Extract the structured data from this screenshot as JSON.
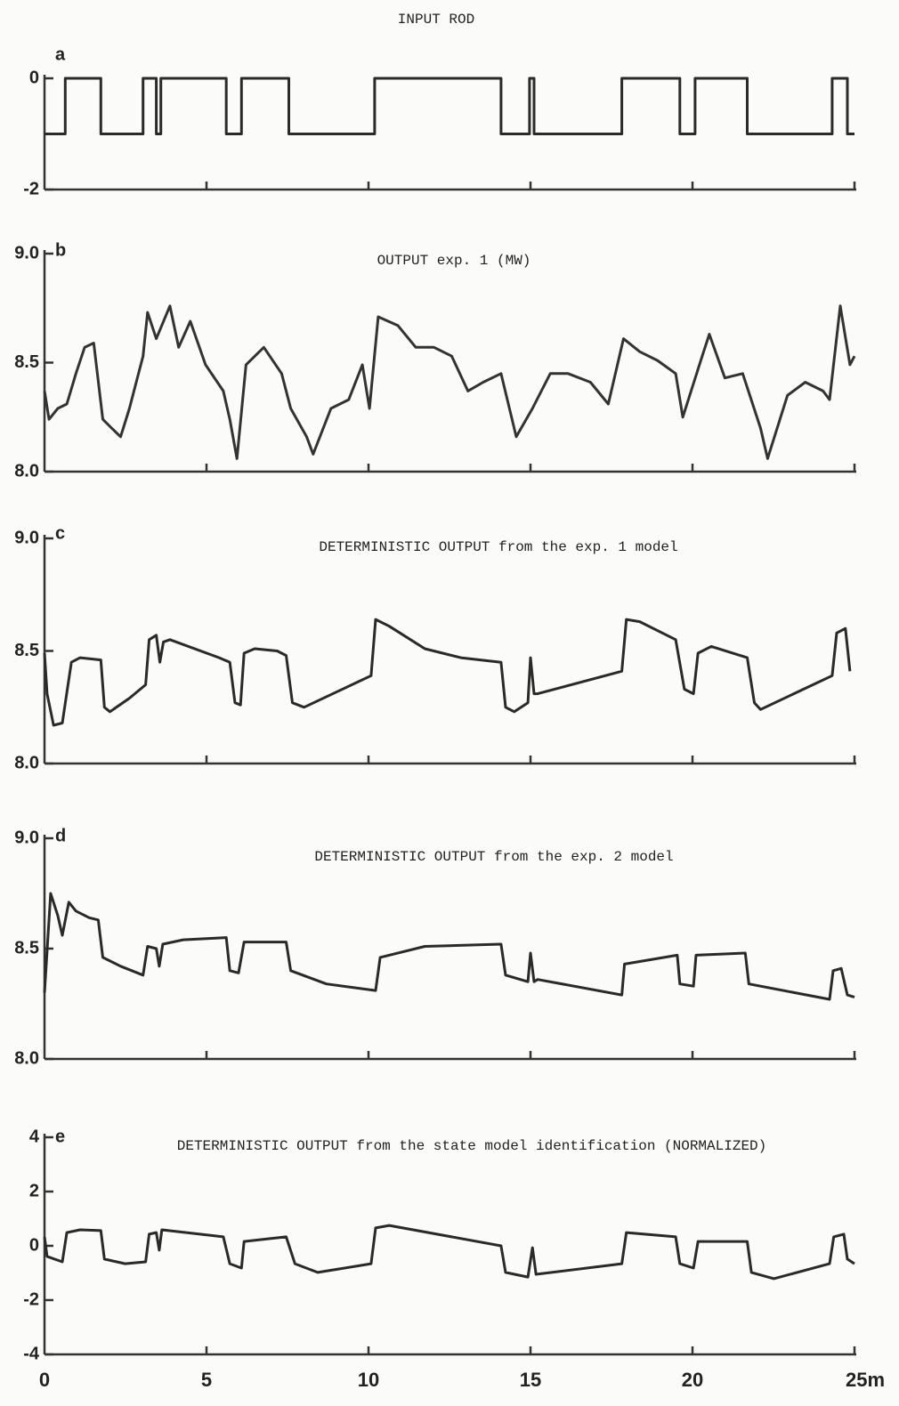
{
  "chart_data": [
    {
      "type": "line",
      "panel_label": "a",
      "title": "INPUT ROD",
      "color": "#2a2a2a",
      "xlim": [
        0,
        25
      ],
      "ylim": [
        -2,
        0
      ],
      "yticks": [
        0,
        -2
      ],
      "x": [
        0,
        0.64,
        0.64,
        1.74,
        1.74,
        3.04,
        3.04,
        3.45,
        3.45,
        3.59,
        3.59,
        5.61,
        5.61,
        6.08,
        6.08,
        7.54,
        7.54,
        10.19,
        10.19,
        14.09,
        14.09,
        14.97,
        14.97,
        15.11,
        15.11,
        17.82,
        17.82,
        19.61,
        19.61,
        20.08,
        20.08,
        21.69,
        21.69,
        24.31,
        24.31,
        24.78,
        24.78,
        25
      ],
      "values": [
        -1,
        -1,
        0,
        0,
        -1,
        -1,
        0,
        0,
        -1,
        -1,
        0,
        0,
        -1,
        -1,
        0,
        0,
        -1,
        -1,
        0,
        0,
        -1,
        -1,
        0,
        0,
        -1,
        -1,
        0,
        0,
        -1,
        -1,
        0,
        0,
        -1,
        -1,
        0,
        0,
        -1,
        -1
      ]
    },
    {
      "type": "line",
      "panel_label": "b",
      "title": "OUTPUT exp. 1 (MW)",
      "color": "#333333",
      "xlim": [
        0,
        25
      ],
      "ylim": [
        8,
        9
      ],
      "yticks": [
        {
          "value": 9,
          "label": "9.0"
        },
        8.5,
        {
          "value": 8,
          "label": "8.0"
        }
      ],
      "x": [
        0,
        0.14,
        0.41,
        0.69,
        0.97,
        1.24,
        1.52,
        1.8,
        2.07,
        2.35,
        2.62,
        3.04,
        3.18,
        3.45,
        3.87,
        4.14,
        4.5,
        4.97,
        5.52,
        5.72,
        5.94,
        6.22,
        6.77,
        7.32,
        7.6,
        8.09,
        8.29,
        8.84,
        9.39,
        9.81,
        10.03,
        10.3,
        10.91,
        11.46,
        12.02,
        12.57,
        13.07,
        13.54,
        14.09,
        14.56,
        15.06,
        15.61,
        16.16,
        16.85,
        17.4,
        17.87,
        18.37,
        18.92,
        19.48,
        19.7,
        20.3,
        20.52,
        21.0,
        21.55,
        22.1,
        22.32,
        22.93,
        23.48,
        24.03,
        24.23,
        24.56,
        24.86,
        25
      ],
      "values": [
        8.37,
        8.24,
        8.29,
        8.31,
        8.45,
        8.57,
        8.59,
        8.24,
        8.2,
        8.16,
        8.29,
        8.53,
        8.73,
        8.61,
        8.76,
        8.57,
        8.69,
        8.49,
        8.37,
        8.24,
        8.06,
        8.49,
        8.57,
        8.45,
        8.29,
        8.16,
        8.08,
        8.29,
        8.33,
        8.49,
        8.29,
        8.71,
        8.67,
        8.57,
        8.57,
        8.53,
        8.37,
        8.41,
        8.45,
        8.16,
        8.29,
        8.45,
        8.45,
        8.41,
        8.31,
        8.61,
        8.55,
        8.51,
        8.45,
        8.25,
        8.53,
        8.63,
        8.43,
        8.45,
        8.2,
        8.06,
        8.35,
        8.41,
        8.37,
        8.33,
        8.76,
        8.49,
        8.53
      ]
    },
    {
      "type": "line",
      "panel_label": "c",
      "title": "DETERMINISTIC OUTPUT from the exp. 1 model",
      "color": "#2a2a2a",
      "xlim": [
        0,
        25
      ],
      "ylim": [
        8,
        9
      ],
      "yticks": [
        {
          "value": 9,
          "label": "9.0"
        },
        8.5,
        {
          "value": 8,
          "label": "8.0"
        }
      ],
      "x": [
        0,
        0.08,
        0.28,
        0.55,
        0.83,
        1.1,
        1.74,
        1.85,
        2.02,
        2.62,
        3.12,
        3.23,
        3.45,
        3.56,
        3.67,
        3.87,
        5.39,
        5.72,
        5.88,
        6.05,
        6.16,
        6.49,
        7.18,
        7.46,
        7.65,
        8.01,
        10.08,
        10.22,
        10.64,
        11.74,
        12.85,
        14.09,
        14.23,
        14.5,
        14.92,
        15.0,
        15.11,
        15.22,
        17.82,
        17.96,
        18.37,
        19.48,
        19.75,
        20.03,
        20.17,
        20.58,
        21.69,
        21.91,
        22.1,
        24.31,
        24.45,
        24.72,
        24.86
      ],
      "values": [
        8.49,
        8.31,
        8.17,
        8.18,
        8.45,
        8.47,
        8.46,
        8.25,
        8.23,
        8.29,
        8.35,
        8.55,
        8.57,
        8.45,
        8.54,
        8.55,
        8.47,
        8.45,
        8.27,
        8.26,
        8.49,
        8.51,
        8.5,
        8.48,
        8.27,
        8.25,
        8.39,
        8.64,
        8.61,
        8.51,
        8.47,
        8.45,
        8.25,
        8.23,
        8.27,
        8.47,
        8.31,
        8.31,
        8.41,
        8.64,
        8.63,
        8.55,
        8.33,
        8.31,
        8.49,
        8.52,
        8.47,
        8.27,
        8.24,
        8.39,
        8.58,
        8.6,
        8.41
      ]
    },
    {
      "type": "line",
      "panel_label": "d",
      "title": "DETERMINISTIC OUTPUT from the exp. 2 model",
      "color": "#2a2a2a",
      "xlim": [
        0,
        25
      ],
      "ylim": [
        8,
        9
      ],
      "yticks": [
        {
          "value": 9,
          "label": "9.0"
        },
        8.5,
        {
          "value": 8,
          "label": "8.0"
        }
      ],
      "x": [
        0,
        0.19,
        0.41,
        0.55,
        0.75,
        0.97,
        1.38,
        1.66,
        1.8,
        2.35,
        3.04,
        3.18,
        3.45,
        3.54,
        3.65,
        4.28,
        5.61,
        5.72,
        5.99,
        6.16,
        7.46,
        7.6,
        8.7,
        10.22,
        10.36,
        11.74,
        14.09,
        14.23,
        14.92,
        15.0,
        15.11,
        15.22,
        17.82,
        17.9,
        19.53,
        19.61,
        20.03,
        20.11,
        21.63,
        21.74,
        24.23,
        24.34,
        24.59,
        24.78,
        25
      ],
      "values": [
        8.3,
        8.75,
        8.65,
        8.56,
        8.71,
        8.67,
        8.64,
        8.63,
        8.46,
        8.42,
        8.38,
        8.51,
        8.5,
        8.42,
        8.52,
        8.54,
        8.55,
        8.4,
        8.39,
        8.53,
        8.53,
        8.4,
        8.34,
        8.31,
        8.46,
        8.51,
        8.52,
        8.38,
        8.35,
        8.48,
        8.35,
        8.36,
        8.29,
        8.43,
        8.47,
        8.34,
        8.33,
        8.47,
        8.48,
        8.34,
        8.27,
        8.4,
        8.41,
        8.29,
        8.28
      ]
    },
    {
      "type": "line",
      "panel_label": "e",
      "title": "DETERMINISTIC OUTPUT from the state model identification (NORMALIZED)",
      "color": "#2a2a2a",
      "xlim": [
        0,
        25
      ],
      "ylim": [
        -4,
        4
      ],
      "yticks": [
        4,
        2,
        0,
        -2,
        -4
      ],
      "xticks": [
        0,
        5,
        10,
        15,
        20,
        {
          "value": 25,
          "label": "25m"
        }
      ],
      "x": [
        0,
        0.08,
        0.55,
        0.69,
        1.1,
        1.74,
        1.85,
        2.49,
        3.12,
        3.23,
        3.45,
        3.54,
        3.62,
        5.52,
        5.72,
        6.08,
        6.16,
        7.46,
        7.73,
        8.43,
        10.08,
        10.22,
        10.64,
        14.09,
        14.23,
        14.92,
        15.06,
        15.17,
        17.82,
        17.96,
        19.48,
        19.61,
        20.03,
        20.17,
        21.69,
        21.82,
        22.51,
        24.23,
        24.36,
        24.67,
        24.78,
        25
      ],
      "values": [
        0.33,
        -0.39,
        -0.59,
        0.49,
        0.59,
        0.56,
        -0.49,
        -0.66,
        -0.59,
        0.43,
        0.49,
        -0.16,
        0.59,
        0.33,
        -0.66,
        -0.82,
        0.16,
        0.33,
        -0.66,
        -0.98,
        -0.66,
        0.66,
        0.75,
        0,
        -0.98,
        -1.15,
        -0.07,
        -1.05,
        -0.66,
        0.49,
        0.33,
        -0.66,
        -0.82,
        0.16,
        0.16,
        -0.98,
        -1.21,
        -0.66,
        0.33,
        0.43,
        -0.49,
        -0.66
      ]
    }
  ]
}
